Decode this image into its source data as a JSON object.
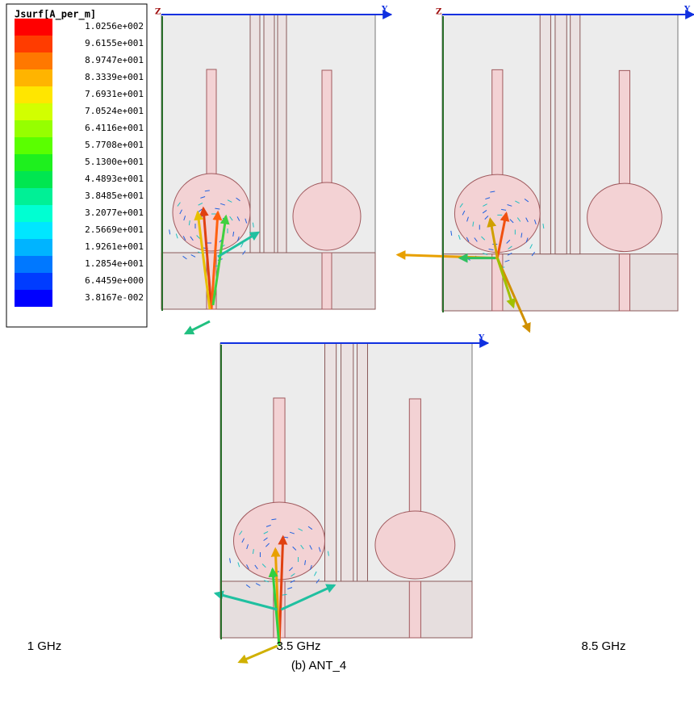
{
  "legend": {
    "title": "Jsurf[A_per_m]",
    "labels": [
      "1.0256e+002",
      "9.6155e+001",
      "8.9747e+001",
      "8.3339e+001",
      "7.6931e+001",
      "7.0524e+001",
      "6.4116e+001",
      "5.7708e+001",
      "5.1300e+001",
      "4.4893e+001",
      "3.8485e+001",
      "3.2077e+001",
      "2.5669e+001",
      "1.9261e+001",
      "1.2854e+001",
      "6.4459e+000",
      "3.8167e-002"
    ]
  },
  "panels": [
    {
      "axis_z": "Z",
      "axis_y": "Y",
      "caption": "1 GHz"
    },
    {
      "axis_z": "Z",
      "axis_y": "Y",
      "caption": "3.5 GHz"
    },
    {
      "axis_y": "Y",
      "caption": "8.5 GHz"
    }
  ],
  "figure_caption": "(b) ANT_4"
}
